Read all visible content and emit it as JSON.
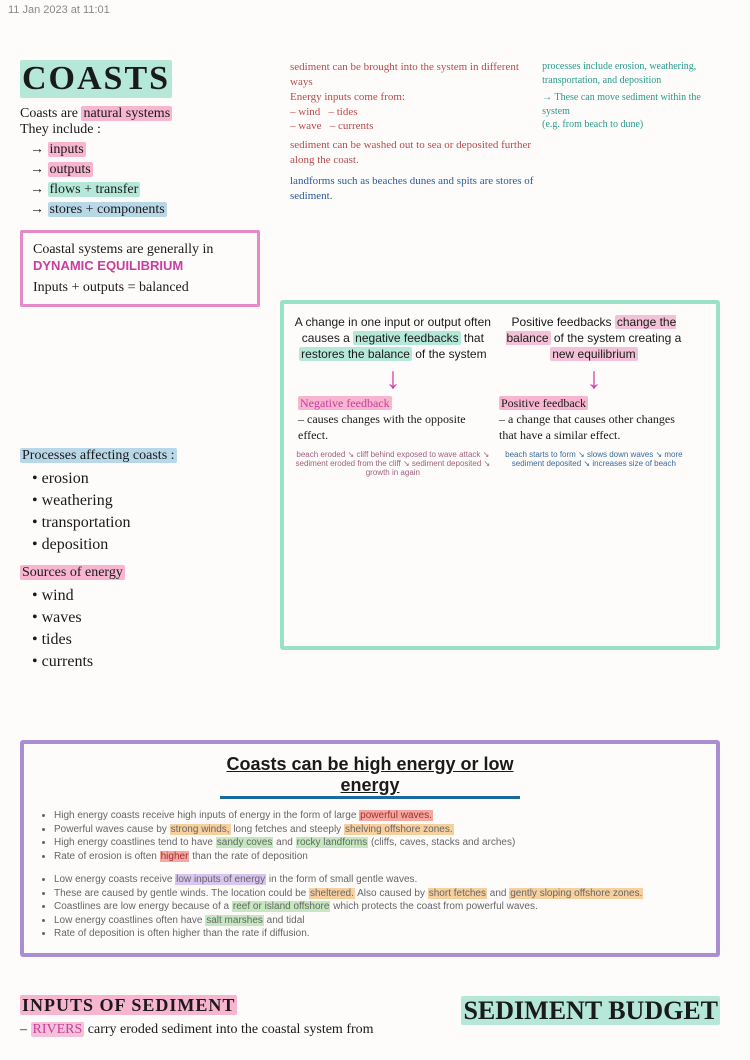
{
  "timestamp": "11 Jan 2023 at 11:01",
  "title": "COASTS",
  "intro_line1_a": "Coasts are ",
  "intro_line1_b": "natural systems",
  "intro_line2": "They include :",
  "includes": [
    "inputs",
    "outputs",
    "flows + transfer",
    "stores + components"
  ],
  "eq_box_l1": "Coastal systems are generally in ",
  "eq_box_emph": "DYNAMIC EQUILIBRIUM",
  "eq_box_l2": "Inputs + outputs = balanced",
  "proc_heading": "Processes affecting coasts :",
  "processes": [
    "erosion",
    "weathering",
    "transportation",
    "deposition"
  ],
  "energy_heading": "Sources of energy",
  "energy": [
    "wind",
    "waves",
    "tides",
    "currents"
  ],
  "rt": {
    "red1": "sediment can be brought into the system in different ways",
    "red2": "Energy inputs come from:",
    "red_items": "– wind   – tides\n– wave   – currents",
    "red3": "sediment can be washed out to sea or deposited further along the coast.",
    "blue": "landforms such as beaches dunes and spits are stores of sediment.",
    "teal1": "processes include erosion, weathering, transportation, and deposition",
    "teal2": "→ These can move sediment within the system",
    "teal3": "(e.g. from beach to dune)"
  },
  "fb": {
    "neg_top": "A change in one input or output often causes a ",
    "neg_hl1": "negative feedbacks",
    "neg_mid": " that ",
    "neg_hl2": "restores the balance",
    "neg_end": " of the system",
    "pos_top": "Positive feedbacks ",
    "pos_hl1": "change the balance",
    "pos_mid": " of the system creating a ",
    "pos_hl2": "new equilibrium",
    "neg_title": "Negative feedback",
    "neg_body": "– causes changes with the opposite effect.",
    "pos_title": "Positive feedback",
    "pos_body": "– a change that causes other changes that have a similar effect.",
    "cycle_neg": [
      "beach eroded",
      "cliff behind exposed to wave attack",
      "sediment eroded from the cliff",
      "sediment deposited",
      "growth in again"
    ],
    "cycle_pos": [
      "beach starts to form",
      "slows down waves",
      "more sediment deposited",
      "increases size of beach"
    ]
  },
  "pb": {
    "heading": "Coasts can be high energy or low energy",
    "high": [
      "High energy coasts receive high inputs of energy in the form of large |powerful waves.|r",
      "Powerful waves cause by |strong winds,|o long fetches and steeply |shelving offshore zones.|o",
      "High energy coastlines tend to have |sandy coves|g and |rocky landforms|g (cliffs, caves, stacks and arches)",
      "Rate of erosion is often |higher|r than the rate of deposition"
    ],
    "low": [
      "Low energy coasts receive |low inputs of energy|p in the form of small gentle waves.",
      "These are caused by gentle winds. The location could be |sheltered.|o Also caused by |short fetches|o and |gently sloping offshore zones.|o",
      "Coastlines are low energy because of a |reef or island offshore|g which protects the coast from powerful waves.",
      "Low energy coastlines often have |salt marshes|g and tidal",
      "Rate of deposition is often higher than the rate if diffusion."
    ]
  },
  "bottom": {
    "h1": "INPUTS OF SEDIMENT",
    "l1a": "RIVERS",
    "l1b": " carry eroded sediment into the coastal system from",
    "budget": "SEDIMENT BUDGET"
  },
  "colors": {
    "red_ink": "#b84a4a",
    "blue_ink": "#2a5a9a",
    "teal_ink": "#2a9a8a",
    "magenta": "#c93d9e"
  }
}
